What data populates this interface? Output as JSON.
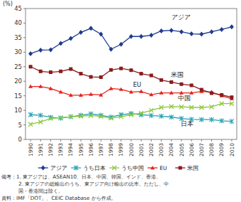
{
  "chart_data": {
    "type": "line",
    "y_label": "(%)",
    "x": [
      1990,
      1991,
      1992,
      1993,
      1994,
      1995,
      1996,
      1997,
      1998,
      1999,
      2000,
      2001,
      2002,
      2003,
      2004,
      2005,
      2006,
      2007,
      2008,
      2009,
      2010
    ],
    "xlim": [
      1989.5,
      2010.5
    ],
    "xticks": [
      1990,
      1991,
      1992,
      1993,
      1994,
      1995,
      1996,
      1997,
      1998,
      1999,
      2000,
      2001,
      2002,
      2003,
      2004,
      2005,
      2006,
      2007,
      2008,
      2009,
      2010
    ],
    "ylim": [
      0,
      45
    ],
    "yticks": [
      0,
      5,
      10,
      15,
      20,
      25,
      30,
      35,
      40,
      45
    ],
    "grid": false,
    "legend": "bottom",
    "series": [
      {
        "name": "アジア",
        "color": "#1f3a8f",
        "marker": "diamond",
        "values": [
          29.5,
          30.7,
          30.8,
          33.0,
          34.7,
          36.8,
          38.2,
          36.2,
          31.0,
          32.7,
          35.4,
          35.4,
          35.8,
          37.3,
          37.5,
          37.0,
          36.3,
          36.2,
          37.0,
          37.8,
          38.7
        ]
      },
      {
        "name": "うち日本",
        "color": "#26a3b3",
        "marker": "asterisk",
        "values": [
          8.5,
          8.3,
          7.6,
          7.3,
          7.8,
          8.3,
          8.8,
          8.3,
          7.7,
          8.5,
          8.9,
          8.5,
          8.2,
          8.0,
          7.7,
          7.2,
          6.9,
          6.8,
          6.8,
          6.4,
          6.2
        ]
      },
      {
        "name": "うち中国",
        "color": "#8cc83c",
        "marker": "x",
        "values": [
          5.2,
          6.0,
          7.2,
          7.5,
          7.8,
          8.0,
          8.2,
          7.9,
          7.3,
          7.8,
          8.5,
          9.0,
          10.0,
          11.0,
          11.3,
          11.2,
          11.0,
          11.0,
          11.2,
          12.3,
          12.3
        ]
      },
      {
        "name": "EU",
        "color": "#e8231c",
        "marker": "triangle",
        "values": [
          18.2,
          18.2,
          17.5,
          16.3,
          15.2,
          15.2,
          15.5,
          15.3,
          17.5,
          17.2,
          16.3,
          16.5,
          15.4,
          16.0,
          16.0,
          16.0,
          16.0,
          16.5,
          16.3,
          15.0,
          14.0
        ]
      },
      {
        "name": "米国",
        "color": "#8a1c1c",
        "marker": "square",
        "values": [
          25.0,
          23.4,
          23.1,
          23.4,
          24.2,
          22.6,
          21.5,
          21.4,
          23.9,
          24.4,
          23.8,
          22.6,
          22.0,
          20.4,
          19.7,
          19.0,
          18.6,
          17.1,
          15.9,
          15.3,
          14.5
        ]
      }
    ],
    "annotations": [
      {
        "text": "アジア",
        "x": 2005,
        "y": 41.3
      },
      {
        "text": "米国",
        "x": 2004.6,
        "y": 21.6
      },
      {
        "text": "EU",
        "x": 2000.6,
        "y": 18.0
      },
      {
        "text": "中国",
        "x": 2005.3,
        "y": 13.4
      },
      {
        "text": "日本",
        "x": 2005.6,
        "y": 4.6
      }
    ],
    "notes": [
      "備考：1. 東アジアは、ASEAN10、日本、中国、韓国、インド、香港。",
      "2. 東アジアの総輸出のうち、東アジア向け輸出の比率。ただし、中",
      "国・香港間は除く。",
      "資料：IMF「DOT」、CEIC Database から作成。"
    ]
  }
}
